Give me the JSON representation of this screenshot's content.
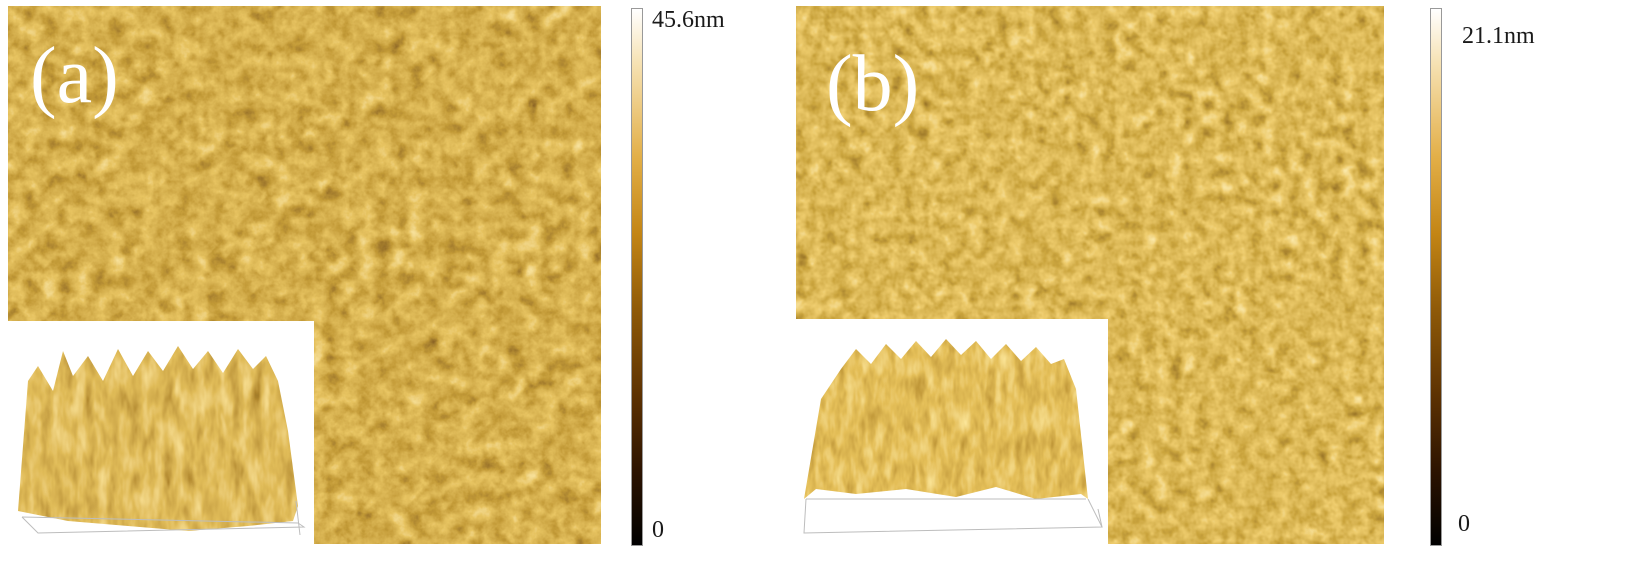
{
  "panels": [
    {
      "label": "(a)",
      "colorbar": {
        "max_label": "45.6nm",
        "min_label": "0"
      }
    },
    {
      "label": "(b)",
      "colorbar": {
        "max_label": "21.1nm",
        "min_label": "0"
      }
    }
  ],
  "colors": {
    "afm_dark": "#2d1401",
    "afm_mid": "#8f5a08",
    "afm_bright": "#e2ae46",
    "afm_highlight": "#fff6dc"
  }
}
